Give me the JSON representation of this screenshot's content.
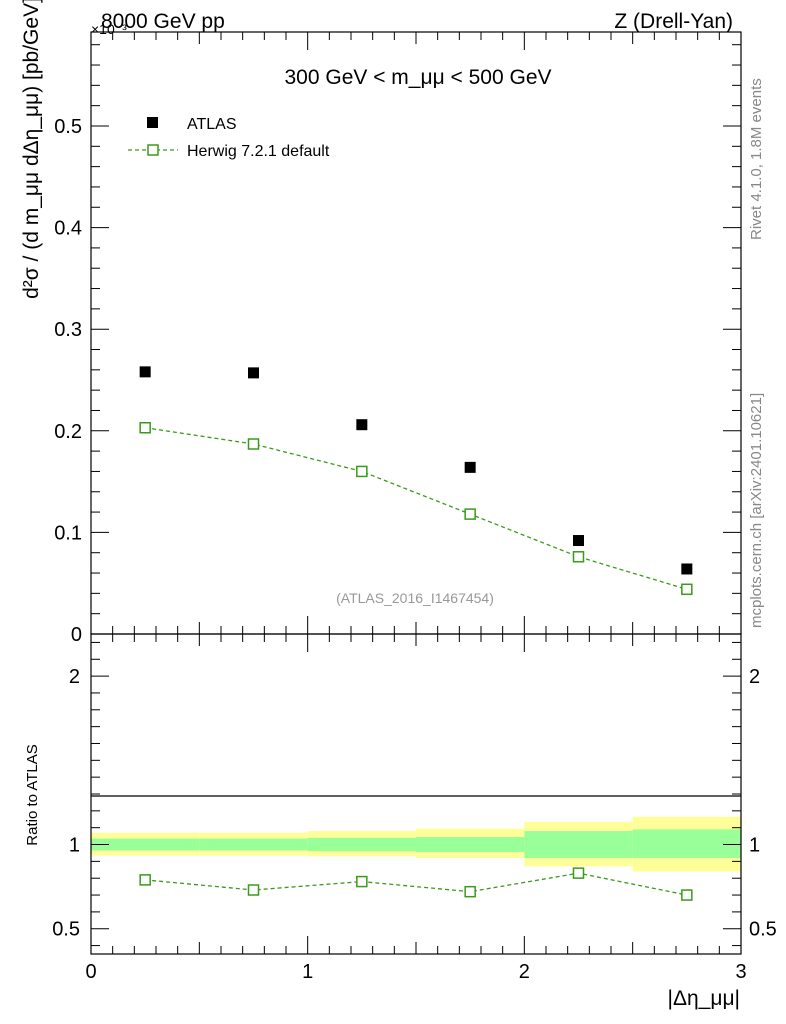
{
  "header": {
    "left_label": "8000 GeV pp",
    "right_label": "Z (Drell-Yan)",
    "exponent_label": "×10⁻³"
  },
  "side_labels": {
    "rivet": "Rivet 4.1.0,  1.8M events",
    "mcplots": "mcplots.cern.ch [arXiv:2401.10621]"
  },
  "colors": {
    "data_marker": "#000000",
    "mc_line": "#3a9a1a",
    "band_inner": "#99ff99",
    "band_outer": "#ffff99",
    "watermark": "#999999",
    "side_text": "#888888"
  },
  "chart_data": [
    {
      "type": "scatter",
      "title": "300 GeV < m_μμ < 500 GeV",
      "xlabel": "|Δη_μμ|",
      "ylabel": "d²σ / (d m_μμ dΔη_μμ) [pb/GeV]",
      "y_scale_note": "×10⁻³",
      "watermark": "(ATLAS_2016_I1467454)",
      "xlim": [
        0,
        3
      ],
      "ylim": [
        0,
        0.5925
      ],
      "y_ticks": [
        0,
        0.1,
        0.2,
        0.3,
        0.4,
        0.5
      ],
      "y_tick_labels": [
        "0",
        "0.1",
        "0.2",
        "0.3",
        "0.4",
        "0.5"
      ],
      "x": [
        0.25,
        0.75,
        1.25,
        1.75,
        2.25,
        2.75
      ],
      "x_err": [
        0.25,
        0.25,
        0.25,
        0.25,
        0.25,
        0.25
      ],
      "legend_position": "top-left",
      "series": [
        {
          "name": "ATLAS",
          "marker": "filled-square",
          "values": [
            0.258,
            0.257,
            0.206,
            0.164,
            0.092,
            0.064
          ]
        },
        {
          "name": "Herwig 7.2.1 default",
          "marker": "open-square",
          "line": "dashed",
          "values": [
            0.203,
            0.187,
            0.16,
            0.118,
            0.076,
            0.044
          ]
        }
      ]
    },
    {
      "type": "line",
      "ylabel": "Ratio to ATLAS",
      "xlabel": "|Δη_μμ|",
      "xlim": [
        0,
        3
      ],
      "ylim": [
        0.35,
        2.25
      ],
      "x_ticks": [
        0,
        1,
        2,
        3
      ],
      "x_tick_labels": [
        "0",
        "1",
        "2",
        "3"
      ],
      "y_ticks": [
        0.5,
        1,
        2
      ],
      "y_tick_labels": [
        "0.5",
        "1",
        "2"
      ],
      "x": [
        0.25,
        0.75,
        1.25,
        1.75,
        2.25,
        2.75
      ],
      "bin_edges": [
        0,
        0.5,
        1.0,
        1.5,
        2.0,
        2.5,
        3.0
      ],
      "band_inner": [
        [
          0.965,
          1.035
        ],
        [
          0.965,
          1.035
        ],
        [
          0.96,
          1.04
        ],
        [
          0.955,
          1.045
        ],
        [
          0.92,
          1.08
        ],
        [
          0.92,
          1.09
        ]
      ],
      "band_outer": [
        [
          0.935,
          1.07
        ],
        [
          0.935,
          1.07
        ],
        [
          0.93,
          1.08
        ],
        [
          0.92,
          1.095
        ],
        [
          0.87,
          1.135
        ],
        [
          0.84,
          1.165
        ]
      ],
      "series": [
        {
          "name": "Herwig 7.2.1 default / ATLAS",
          "marker": "open-square",
          "line": "dashed",
          "values": [
            0.79,
            0.73,
            0.78,
            0.72,
            0.83,
            0.7
          ]
        }
      ]
    }
  ]
}
